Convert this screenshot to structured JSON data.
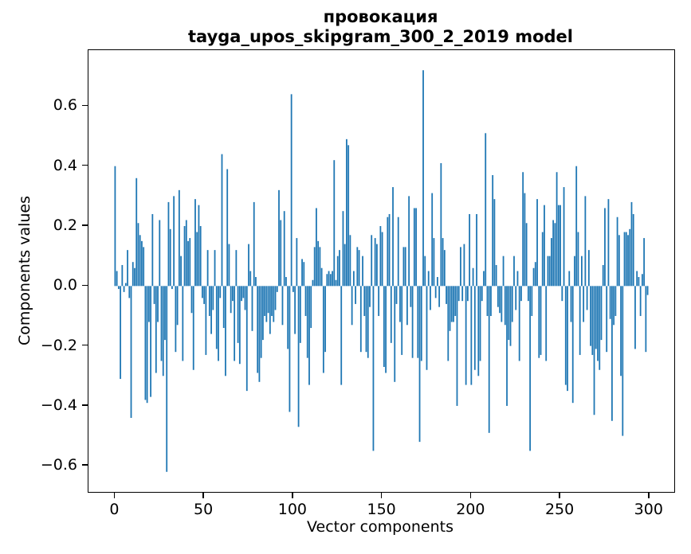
{
  "title": {
    "line1": "провокация",
    "line2": "tayga_upos_skipgram_300_2_2019 model"
  },
  "chart_data": {
    "type": "bar",
    "title": "провокация — tayga_upos_skipgram_300_2_2019 model",
    "xlabel": "Vector components",
    "ylabel": "Components values",
    "legend": null,
    "grid": false,
    "bar_color": "#1f77b4",
    "n_components": 300,
    "xlim": [
      -14.95,
      313.95
    ],
    "ylim": [
      -0.687,
      0.787
    ],
    "x_ticks": [
      0,
      50,
      100,
      150,
      200,
      250,
      300
    ],
    "x_tick_labels": [
      "0",
      "50",
      "100",
      "150",
      "200",
      "250",
      "300"
    ],
    "y_ticks": [
      0.6,
      0.4,
      0.2,
      0.0,
      -0.2,
      -0.4,
      -0.6
    ],
    "y_tick_labels": [
      "0.6",
      "0.4",
      "0.2",
      "0.0",
      "−0.2",
      "−0.4",
      "−0.6"
    ],
    "values": [
      0.4,
      0.05,
      -0.01,
      -0.31,
      0.07,
      -0.02,
      0.01,
      0.12,
      -0.04,
      -0.44,
      0.08,
      0.06,
      0.36,
      0.21,
      0.17,
      0.15,
      0.13,
      -0.38,
      -0.39,
      -0.12,
      -0.37,
      0.24,
      -0.06,
      -0.29,
      -0.12,
      0.22,
      -0.25,
      -0.3,
      -0.18,
      -0.62,
      0.28,
      0.19,
      -0.01,
      0.3,
      -0.22,
      -0.13,
      0.32,
      0.1,
      -0.25,
      0.2,
      0.22,
      0.15,
      0.16,
      -0.09,
      -0.28,
      0.29,
      0.18,
      0.27,
      0.2,
      -0.04,
      -0.06,
      -0.23,
      0.12,
      -0.1,
      -0.16,
      -0.08,
      0.12,
      -0.21,
      -0.25,
      -0.04,
      0.44,
      -0.14,
      -0.3,
      0.39,
      0.14,
      -0.09,
      -0.05,
      -0.25,
      0.12,
      -0.19,
      -0.26,
      -0.05,
      -0.04,
      -0.08,
      -0.35,
      0.14,
      0.05,
      -0.15,
      0.28,
      0.03,
      -0.29,
      -0.32,
      -0.24,
      -0.18,
      -0.1,
      -0.12,
      -0.09,
      -0.16,
      -0.1,
      -0.12,
      -0.08,
      -0.02,
      0.32,
      0.22,
      -0.13,
      0.25,
      0.03,
      -0.21,
      -0.42,
      0.64,
      -0.02,
      -0.16,
      0.16,
      -0.47,
      -0.19,
      0.09,
      0.08,
      -0.1,
      -0.24,
      -0.33,
      -0.14,
      0.02,
      0.13,
      0.26,
      0.15,
      0.13,
      0.06,
      -0.29,
      -0.22,
      0.04,
      0.05,
      0.04,
      0.05,
      0.42,
      0.02,
      0.1,
      0.12,
      -0.33,
      0.25,
      0.14,
      0.49,
      0.47,
      0.17,
      -0.13,
      0.05,
      -0.06,
      0.13,
      0.12,
      -0.22,
      0.1,
      -0.1,
      -0.22,
      -0.24,
      -0.07,
      0.17,
      -0.55,
      0.16,
      0.14,
      -0.1,
      0.2,
      0.18,
      -0.27,
      -0.29,
      0.23,
      0.24,
      -0.19,
      0.33,
      -0.32,
      -0.06,
      0.23,
      -0.12,
      -0.23,
      0.13,
      0.13,
      -0.13,
      0.3,
      -0.07,
      -0.24,
      0.26,
      0.26,
      -0.24,
      -0.52,
      -0.25,
      0.72,
      0.1,
      -0.28,
      0.05,
      -0.08,
      0.31,
      0.16,
      -0.04,
      0.03,
      -0.07,
      0.41,
      0.16,
      0.12,
      -0.06,
      -0.25,
      -0.15,
      -0.12,
      -0.12,
      -0.1,
      -0.4,
      -0.05,
      0.13,
      -0.05,
      0.14,
      -0.33,
      -0.05,
      0.24,
      -0.33,
      0.06,
      -0.28,
      0.24,
      -0.3,
      -0.25,
      -0.05,
      0.05,
      0.51,
      -0.1,
      -0.49,
      -0.1,
      0.37,
      0.29,
      0.07,
      -0.07,
      -0.09,
      -0.12,
      0.1,
      -0.13,
      -0.4,
      -0.18,
      -0.2,
      -0.12,
      0.1,
      -0.08,
      0.05,
      -0.25,
      -0.05,
      0.38,
      0.31,
      0.21,
      -0.05,
      -0.55,
      -0.1,
      0.06,
      0.08,
      0.29,
      -0.24,
      -0.23,
      0.18,
      0.27,
      -0.25,
      0.1,
      0.1,
      0.16,
      0.22,
      0.21,
      0.38,
      0.27,
      0.27,
      -0.05,
      0.33,
      -0.33,
      -0.35,
      0.05,
      -0.12,
      -0.39,
      0.1,
      0.4,
      0.18,
      -0.23,
      0.1,
      -0.12,
      0.3,
      -0.08,
      0.12,
      -0.2,
      -0.23,
      -0.43,
      -0.21,
      -0.25,
      -0.28,
      -0.18,
      0.07,
      0.26,
      -0.22,
      0.29,
      -0.11,
      -0.45,
      -0.13,
      -0.1,
      0.23,
      0.17,
      -0.3,
      -0.5,
      0.18,
      0.18,
      0.17,
      0.19,
      0.28,
      0.24,
      -0.21,
      0.05,
      0.03,
      -0.1,
      0.04,
      0.16,
      -0.22,
      -0.03
    ]
  },
  "axes": {
    "xlabel": "Vector components",
    "ylabel": "Components values"
  }
}
